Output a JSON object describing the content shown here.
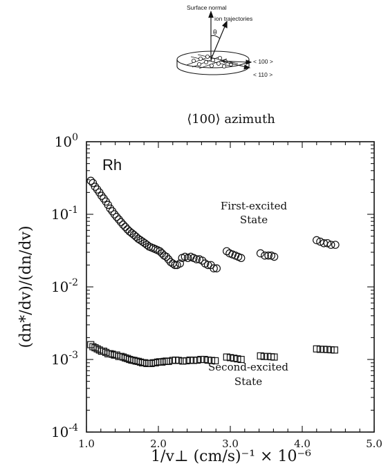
{
  "inset": {
    "surface_normal_label": "Surface normal",
    "ion_trajectories_label": "ion trajectories",
    "theta_label": "θ",
    "direction_100_label": "< 100 >",
    "direction_110_label": "< 110 >"
  },
  "chart_data": {
    "type": "scatter",
    "title": "⟨100⟩ azimuth",
    "xlabel": "1/v⊥  (cm/s)⁻¹ × 10⁻⁶",
    "ylabel": "(dn*/dv)/(dn/dv)",
    "xlim": [
      1.0,
      5.0
    ],
    "ylim": [
      0.0001,
      1
    ],
    "y_scale": "log",
    "grid": false,
    "x_tick_labels": [
      "1.0",
      "2.0",
      "3.0",
      "4.0",
      "5.0"
    ],
    "y_tick_labels": [
      {
        "base": "10",
        "exp": "0"
      },
      {
        "base": "10",
        "exp": "-1"
      },
      {
        "base": "10",
        "exp": "-2"
      },
      {
        "base": "10",
        "exp": "-3"
      },
      {
        "base": "10",
        "exp": "-4"
      }
    ],
    "element_label": "Rh",
    "annotations": [
      {
        "lines": [
          "First-excited",
          "State"
        ]
      },
      {
        "lines": [
          "Second-excited",
          "State"
        ]
      }
    ],
    "series": [
      {
        "marker": "circle",
        "points": [
          [
            1.06,
            0.29
          ],
          [
            1.09,
            0.27
          ],
          [
            1.12,
            0.24
          ],
          [
            1.15,
            0.22
          ],
          [
            1.18,
            0.2
          ],
          [
            1.21,
            0.18
          ],
          [
            1.24,
            0.165
          ],
          [
            1.27,
            0.15
          ],
          [
            1.3,
            0.135
          ],
          [
            1.33,
            0.12
          ],
          [
            1.36,
            0.11
          ],
          [
            1.39,
            0.1
          ],
          [
            1.42,
            0.092
          ],
          [
            1.45,
            0.085
          ],
          [
            1.48,
            0.078
          ],
          [
            1.51,
            0.072
          ],
          [
            1.54,
            0.067
          ],
          [
            1.57,
            0.062
          ],
          [
            1.6,
            0.058
          ],
          [
            1.63,
            0.055
          ],
          [
            1.66,
            0.052
          ],
          [
            1.69,
            0.049
          ],
          [
            1.72,
            0.046
          ],
          [
            1.75,
            0.044
          ],
          [
            1.78,
            0.042
          ],
          [
            1.81,
            0.04
          ],
          [
            1.84,
            0.038
          ],
          [
            1.87,
            0.036
          ],
          [
            1.9,
            0.035
          ],
          [
            1.93,
            0.034
          ],
          [
            1.96,
            0.033
          ],
          [
            1.99,
            0.032
          ],
          [
            2.02,
            0.031
          ],
          [
            2.05,
            0.029
          ],
          [
            2.08,
            0.027
          ],
          [
            2.11,
            0.026
          ],
          [
            2.14,
            0.024
          ],
          [
            2.17,
            0.022
          ],
          [
            2.2,
            0.021
          ],
          [
            2.23,
            0.02
          ],
          [
            2.26,
            0.02
          ],
          [
            2.3,
            0.021
          ],
          [
            2.33,
            0.025
          ],
          [
            2.37,
            0.026
          ],
          [
            2.41,
            0.025
          ],
          [
            2.45,
            0.026
          ],
          [
            2.49,
            0.025
          ],
          [
            2.53,
            0.024
          ],
          [
            2.57,
            0.024
          ],
          [
            2.61,
            0.023
          ],
          [
            2.65,
            0.021
          ],
          [
            2.69,
            0.02
          ],
          [
            2.73,
            0.02
          ],
          [
            2.77,
            0.018
          ],
          [
            2.81,
            0.018
          ],
          [
            2.95,
            0.031
          ],
          [
            2.99,
            0.029
          ],
          [
            3.03,
            0.028
          ],
          [
            3.07,
            0.027
          ],
          [
            3.11,
            0.026
          ],
          [
            3.15,
            0.025
          ],
          [
            3.42,
            0.029
          ],
          [
            3.48,
            0.027
          ],
          [
            3.53,
            0.027
          ],
          [
            3.57,
            0.027
          ],
          [
            3.61,
            0.026
          ],
          [
            4.2,
            0.044
          ],
          [
            4.25,
            0.042
          ],
          [
            4.3,
            0.04
          ],
          [
            4.35,
            0.04
          ],
          [
            4.4,
            0.038
          ],
          [
            4.46,
            0.038
          ]
        ]
      },
      {
        "marker": "square",
        "points": [
          [
            1.06,
            0.0016
          ],
          [
            1.09,
            0.0015
          ],
          [
            1.12,
            0.00145
          ],
          [
            1.15,
            0.0014
          ],
          [
            1.18,
            0.00135
          ],
          [
            1.21,
            0.0013
          ],
          [
            1.24,
            0.0013
          ],
          [
            1.27,
            0.00125
          ],
          [
            1.3,
            0.0012
          ],
          [
            1.33,
            0.0012
          ],
          [
            1.36,
            0.00118
          ],
          [
            1.39,
            0.00115
          ],
          [
            1.42,
            0.00115
          ],
          [
            1.45,
            0.0011
          ],
          [
            1.48,
            0.0011
          ],
          [
            1.51,
            0.00108
          ],
          [
            1.54,
            0.00105
          ],
          [
            1.57,
            0.00103
          ],
          [
            1.6,
            0.001
          ],
          [
            1.63,
            0.00098
          ],
          [
            1.66,
            0.00097
          ],
          [
            1.69,
            0.00095
          ],
          [
            1.72,
            0.00094
          ],
          [
            1.75,
            0.00092
          ],
          [
            1.78,
            0.0009
          ],
          [
            1.81,
            0.0009
          ],
          [
            1.84,
            0.00088
          ],
          [
            1.87,
            0.00088
          ],
          [
            1.9,
            0.00088
          ],
          [
            1.93,
            0.0009
          ],
          [
            1.96,
            0.0009
          ],
          [
            1.99,
            0.00092
          ],
          [
            2.02,
            0.00093
          ],
          [
            2.05,
            0.00092
          ],
          [
            2.08,
            0.00094
          ],
          [
            2.11,
            0.00095
          ],
          [
            2.14,
            0.00094
          ],
          [
            2.2,
            0.00097
          ],
          [
            2.24,
            0.00098
          ],
          [
            2.28,
            0.00097
          ],
          [
            2.34,
            0.00095
          ],
          [
            2.39,
            0.00096
          ],
          [
            2.44,
            0.00098
          ],
          [
            2.49,
            0.00097
          ],
          [
            2.54,
            0.00098
          ],
          [
            2.59,
            0.001
          ],
          [
            2.64,
            0.001
          ],
          [
            2.69,
            0.00098
          ],
          [
            2.74,
            0.00097
          ],
          [
            2.79,
            0.00096
          ],
          [
            2.95,
            0.00108
          ],
          [
            3.0,
            0.00106
          ],
          [
            3.05,
            0.00104
          ],
          [
            3.1,
            0.00102
          ],
          [
            3.15,
            0.001
          ],
          [
            3.42,
            0.00112
          ],
          [
            3.47,
            0.0011
          ],
          [
            3.52,
            0.0011
          ],
          [
            3.57,
            0.00109
          ],
          [
            3.61,
            0.00108
          ],
          [
            4.2,
            0.0014
          ],
          [
            4.25,
            0.00138
          ],
          [
            4.3,
            0.00138
          ],
          [
            4.35,
            0.00137
          ],
          [
            4.4,
            0.00136
          ],
          [
            4.45,
            0.00135
          ]
        ]
      }
    ]
  }
}
